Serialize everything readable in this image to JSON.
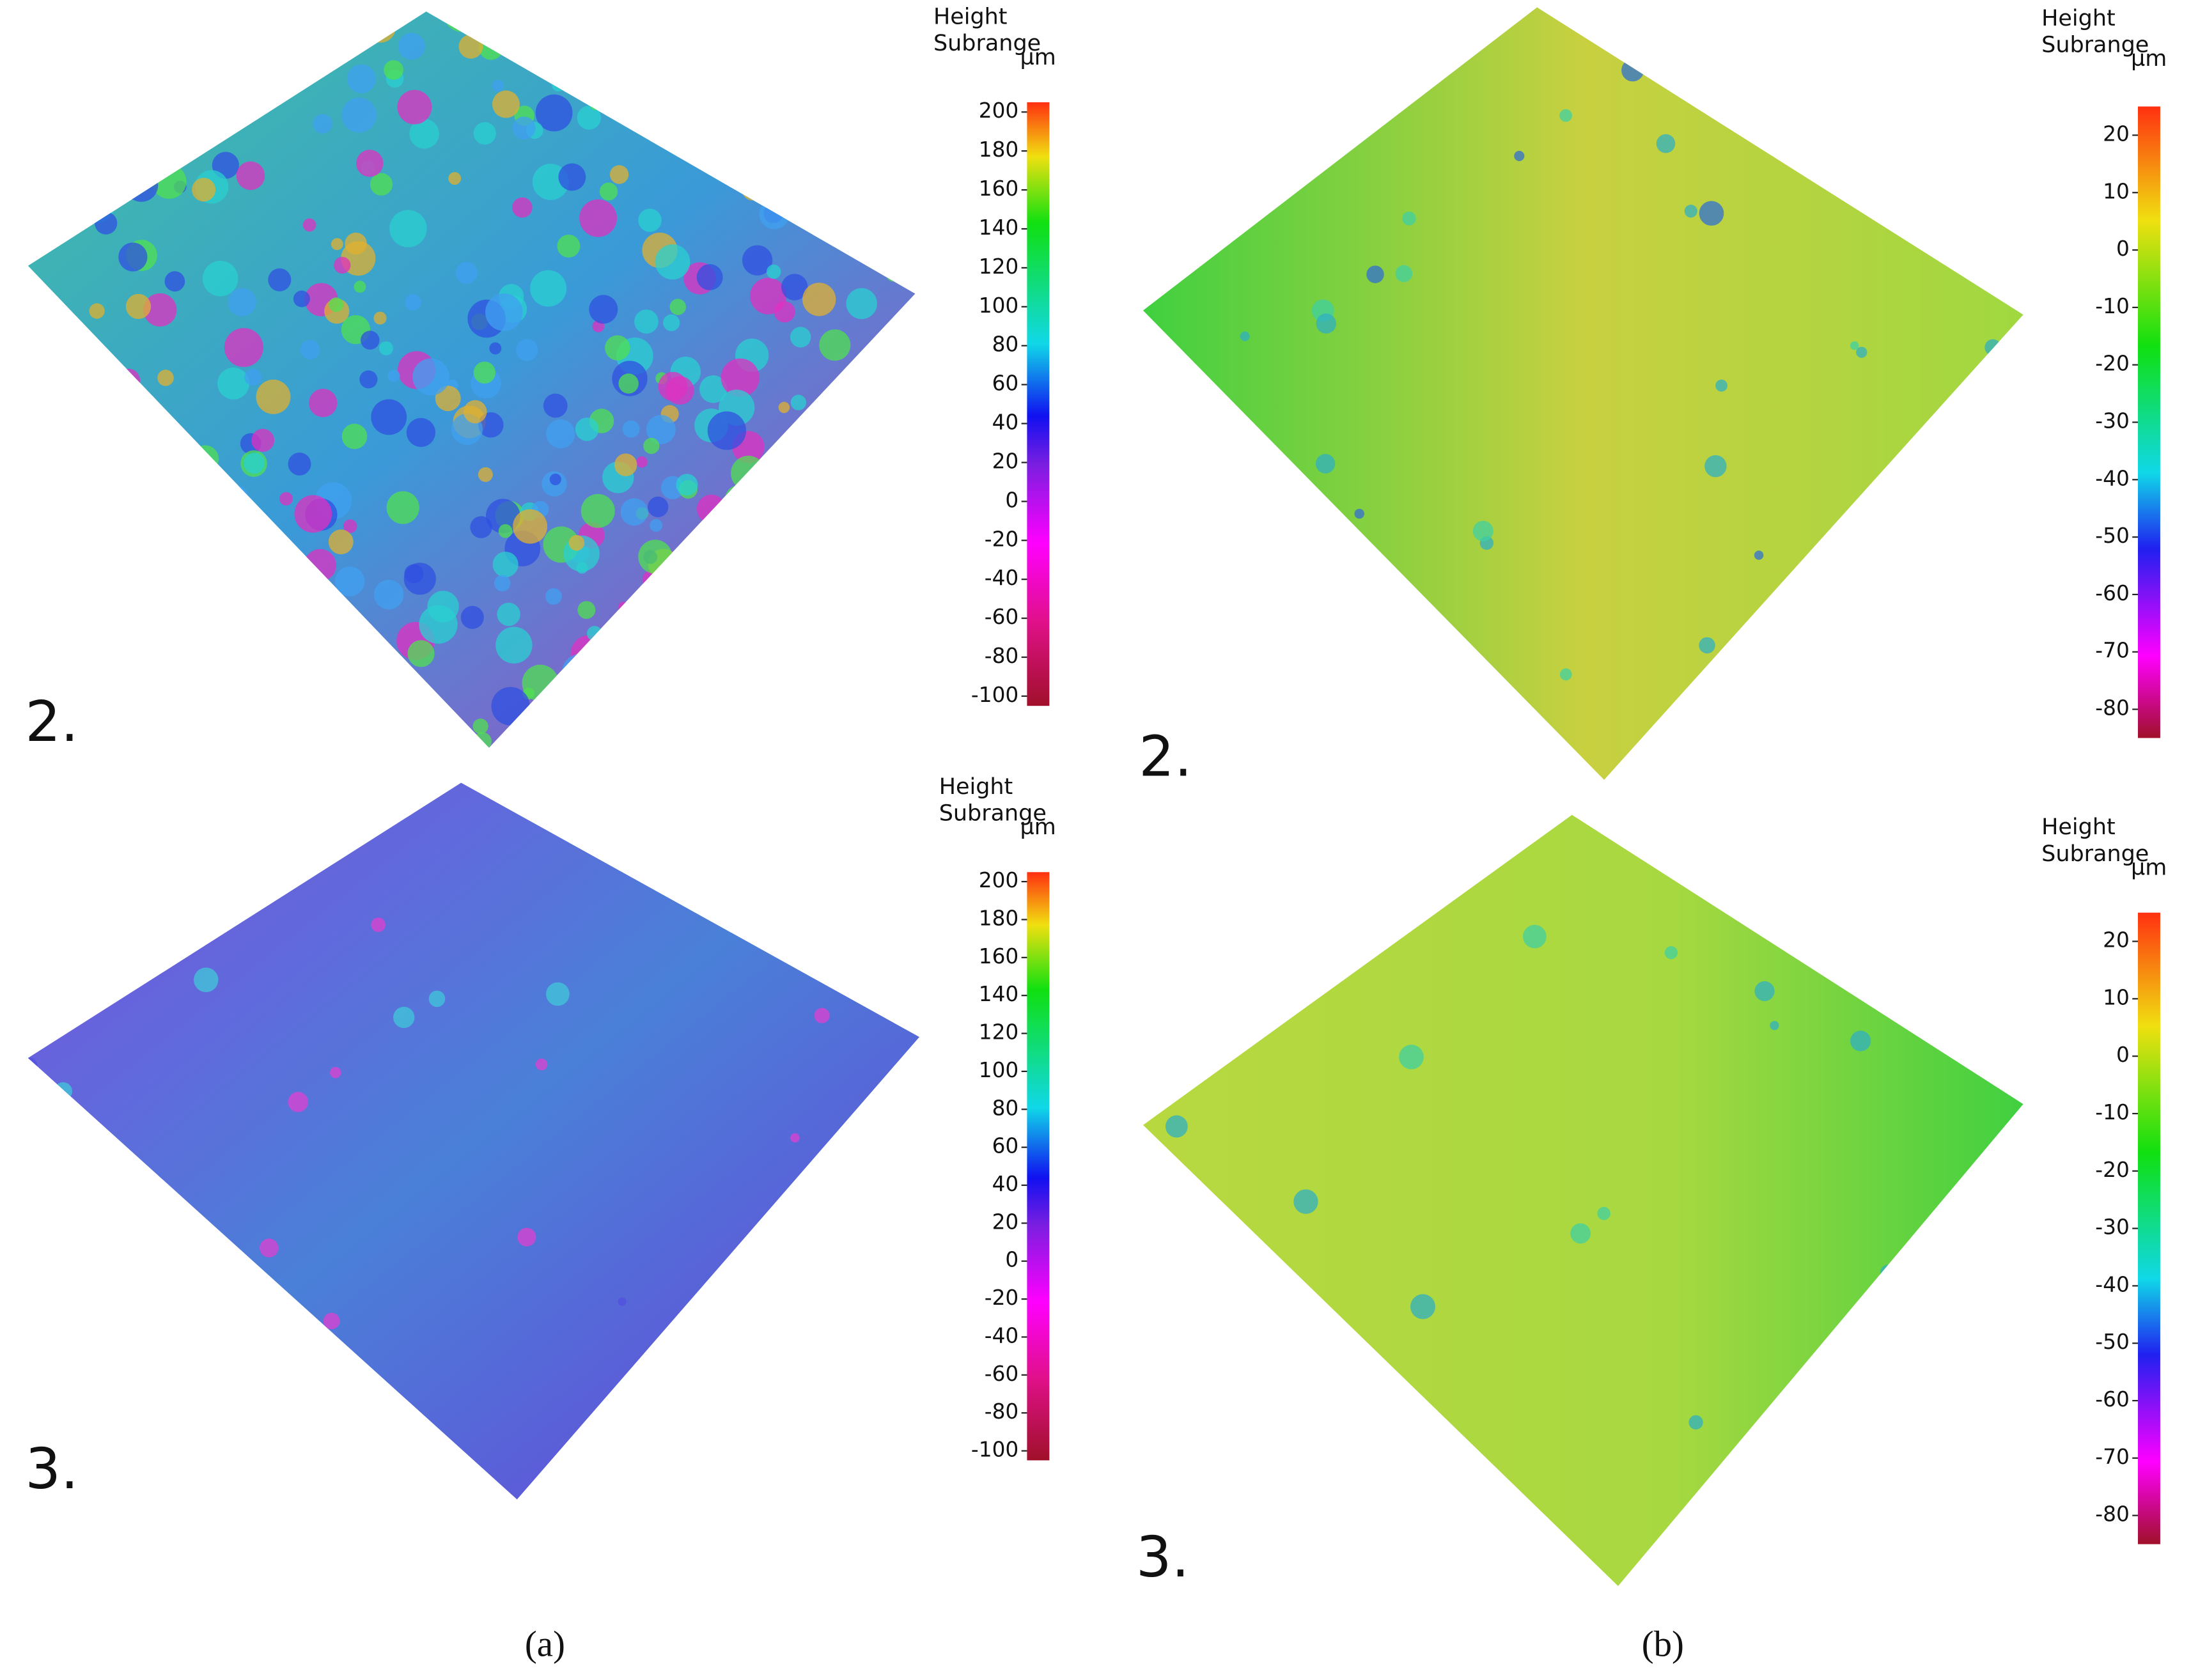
{
  "panels": [
    {
      "label": "2.",
      "colorbar": {
        "title_lines": [
          "Height",
          "Subrange"
        ],
        "unit": "µm",
        "clim": [
          -105,
          205
        ],
        "ticks": [
          200,
          180,
          160,
          140,
          120,
          100,
          80,
          60,
          40,
          20,
          0,
          -20,
          -40,
          -60,
          -80,
          -100
        ]
      }
    },
    {
      "label": "3.",
      "colorbar": {
        "title_lines": [
          "Height",
          "Subrange"
        ],
        "unit": "µm",
        "clim": [
          -105,
          205
        ],
        "ticks": [
          200,
          180,
          160,
          140,
          120,
          100,
          80,
          60,
          40,
          20,
          0,
          -20,
          -40,
          -60,
          -80,
          -100
        ]
      }
    },
    {
      "label": "2.",
      "colorbar": {
        "title_lines": [
          "Height",
          "Subrange"
        ],
        "unit": "µm",
        "clim": [
          -85,
          25
        ],
        "ticks": [
          20,
          10,
          0,
          -10,
          -20,
          -30,
          -40,
          -50,
          -60,
          -70,
          -80
        ]
      }
    },
    {
      "label": "3.",
      "colorbar": {
        "title_lines": [
          "Height",
          "Subrange"
        ],
        "unit": "µm",
        "clim": [
          -85,
          25
        ],
        "ticks": [
          20,
          10,
          0,
          -10,
          -20,
          -30,
          -40,
          -50,
          -60,
          -70,
          -80
        ]
      }
    }
  ],
  "captions": [
    "(a)",
    "(b)"
  ]
}
